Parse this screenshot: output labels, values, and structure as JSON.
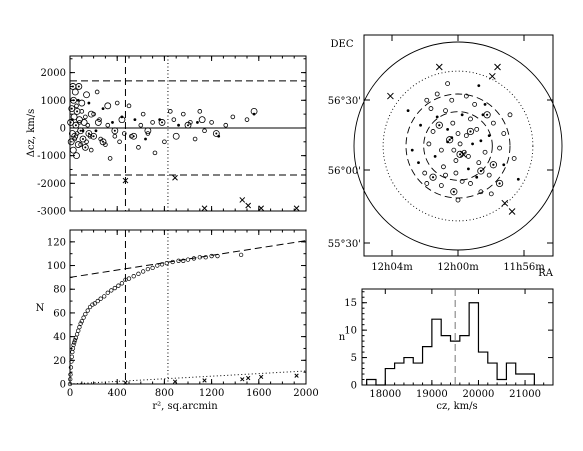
{
  "chart_data": [
    {
      "id": "dcz",
      "type": "scatter",
      "ylabel": "Δcz, km/s",
      "xlim": [
        0,
        2000
      ],
      "ylim": [
        -3000,
        2600
      ],
      "y_ticks": [
        "-3000",
        "-2000",
        "-1000",
        "0",
        "1000",
        "2000"
      ],
      "x_tick_values": [
        0,
        400,
        800,
        1200,
        1600,
        2000
      ],
      "hlines_dashed": [
        1700,
        -1700
      ],
      "hline_solid": 0,
      "vline_dashed": 470,
      "vline_dotted": 830,
      "members_small": [
        [
          20,
          300
        ],
        [
          40,
          -400
        ],
        [
          55,
          800
        ],
        [
          60,
          -200
        ],
        [
          70,
          1000
        ],
        [
          80,
          200
        ],
        [
          90,
          -600
        ],
        [
          100,
          600
        ],
        [
          110,
          -100
        ],
        [
          130,
          400
        ],
        [
          140,
          -500
        ],
        [
          150,
          100
        ],
        [
          160,
          900
        ],
        [
          170,
          -300
        ],
        [
          180,
          -800
        ],
        [
          200,
          500
        ],
        [
          220,
          -100
        ],
        [
          230,
          1300
        ],
        [
          250,
          300
        ],
        [
          260,
          -400
        ],
        [
          280,
          700
        ],
        [
          300,
          -600
        ],
        [
          320,
          100
        ],
        [
          340,
          -1100
        ],
        [
          360,
          200
        ],
        [
          380,
          -300
        ],
        [
          400,
          900
        ],
        [
          420,
          -500
        ],
        [
          440,
          400
        ],
        [
          460,
          -200
        ],
        [
          500,
          800
        ],
        [
          520,
          -300
        ],
        [
          550,
          300
        ],
        [
          580,
          -700
        ],
        [
          600,
          100
        ],
        [
          620,
          500
        ],
        [
          640,
          -400
        ],
        [
          660,
          -200
        ],
        [
          700,
          200
        ],
        [
          720,
          -900
        ],
        [
          760,
          300
        ],
        [
          800,
          -500
        ],
        [
          850,
          600
        ],
        [
          880,
          300
        ],
        [
          920,
          100
        ],
        [
          960,
          500
        ],
        [
          1020,
          200
        ],
        [
          1060,
          -400
        ],
        [
          1080,
          200
        ],
        [
          1100,
          600
        ],
        [
          1140,
          -100
        ],
        [
          1200,
          200
        ],
        [
          1260,
          -300
        ],
        [
          1320,
          100
        ],
        [
          1380,
          400
        ],
        [
          1500,
          300
        ],
        [
          1560,
          500
        ]
      ],
      "members_large": [
        [
          5,
          200
        ],
        [
          10,
          -500
        ],
        [
          15,
          700
        ],
        [
          20,
          -200
        ],
        [
          25,
          1500
        ],
        [
          28,
          -800
        ],
        [
          30,
          1000
        ],
        [
          35,
          400
        ],
        [
          40,
          -300
        ],
        [
          45,
          1300
        ],
        [
          50,
          100
        ],
        [
          55,
          -1000
        ],
        [
          60,
          600
        ],
        [
          70,
          -600
        ],
        [
          75,
          1500
        ],
        [
          80,
          300
        ],
        [
          90,
          -100
        ],
        [
          100,
          900
        ],
        [
          110,
          -400
        ],
        [
          120,
          200
        ],
        [
          130,
          -700
        ],
        [
          140,
          1200
        ],
        [
          160,
          -200
        ],
        [
          180,
          500
        ],
        [
          200,
          -300
        ],
        [
          240,
          200
        ],
        [
          280,
          -500
        ],
        [
          320,
          800
        ],
        [
          380,
          -100
        ],
        [
          440,
          300
        ],
        [
          540,
          -300
        ],
        [
          660,
          -100
        ],
        [
          780,
          200
        ],
        [
          900,
          -300
        ],
        [
          1000,
          100
        ],
        [
          1120,
          300
        ],
        [
          1240,
          -200
        ],
        [
          1560,
          600
        ]
      ],
      "nonmembers": [
        [
          470,
          -1900
        ],
        [
          890,
          -1800
        ],
        [
          1140,
          -2900
        ],
        [
          1460,
          -2600
        ],
        [
          1510,
          -2800
        ],
        [
          1620,
          -2900
        ],
        [
          1920,
          -2900
        ]
      ]
    },
    {
      "id": "cumulative",
      "type": "scatter",
      "ylabel": "N",
      "xlabel": "r², sq.arcmin",
      "xlim": [
        0,
        2000
      ],
      "ylim": [
        0,
        130
      ],
      "x_ticks": [
        "0",
        "400",
        "800",
        "1200",
        "1600",
        "2000"
      ],
      "y_ticks": [
        "0",
        "20",
        "40",
        "60",
        "80",
        "100",
        "120"
      ],
      "vline_dashed": 470,
      "vline_dotted": 830,
      "fit_dashed": {
        "x": [
          0,
          2000
        ],
        "y": [
          90,
          121
        ]
      },
      "fit_dotted": {
        "x": [
          0,
          2000
        ],
        "y": [
          0,
          11
        ]
      },
      "curve_members_r2": [
        0,
        2,
        4,
        8,
        12,
        16,
        20,
        25,
        30,
        36,
        42,
        50,
        60,
        70,
        80,
        90,
        100,
        115,
        130,
        150,
        170,
        190,
        210,
        235,
        260,
        290,
        320,
        350,
        380,
        410,
        440,
        470,
        500,
        540,
        580,
        620,
        660,
        700,
        740,
        780,
        820,
        870,
        920,
        960,
        1000,
        1050,
        1100,
        1150,
        1200,
        1250,
        1450
      ],
      "curve_members_N": [
        0,
        4,
        8,
        14,
        19,
        23,
        27,
        30,
        33,
        35,
        37,
        39,
        42,
        45,
        48,
        51,
        53,
        56,
        59,
        62,
        65,
        67,
        68,
        70,
        72,
        74,
        77,
        79,
        81,
        83,
        85,
        88,
        89,
        91,
        93,
        95,
        97,
        98,
        100,
        101,
        102,
        103,
        104,
        104,
        105,
        106,
        107,
        107,
        108,
        108,
        109
      ],
      "nonmember_points": [
        [
          470,
          1
        ],
        [
          890,
          2
        ],
        [
          1140,
          3
        ],
        [
          1460,
          4
        ],
        [
          1510,
          5
        ],
        [
          1620,
          6
        ],
        [
          1920,
          7
        ]
      ]
    },
    {
      "id": "sky",
      "type": "scatter",
      "ylabel": "DEC",
      "xlabel": "RA",
      "ra_ticks": [
        "12h04m",
        "12h00m",
        "11h56m"
      ],
      "dec_ticks": [
        "56°30'",
        "56°00'",
        "55°30'"
      ],
      "center": [
        0,
        0
      ],
      "circle_radii": [
        1.0,
        0.72,
        0.5,
        0.33
      ],
      "galaxies": [
        [
          -0.2,
          0.28
        ],
        [
          -0.12,
          0.34
        ],
        [
          -0.05,
          0.22
        ],
        [
          0.04,
          0.3
        ],
        [
          0.12,
          0.26
        ],
        [
          0.18,
          0.16
        ],
        [
          0.22,
          0.05
        ],
        [
          0.26,
          -0.06
        ],
        [
          0.2,
          -0.16
        ],
        [
          0.1,
          -0.22
        ],
        [
          -0.02,
          -0.26
        ],
        [
          -0.14,
          -0.2
        ],
        [
          -0.22,
          -0.1
        ],
        [
          -0.28,
          0.02
        ],
        [
          -0.24,
          0.14
        ],
        [
          -0.1,
          0.16
        ],
        [
          0.0,
          0.12
        ],
        [
          0.08,
          0.1
        ],
        [
          0.14,
          0.02
        ],
        [
          0.06,
          -0.06
        ],
        [
          -0.04,
          -0.04
        ],
        [
          -0.1,
          0.04
        ],
        [
          -0.16,
          -0.04
        ],
        [
          0.02,
          0.02
        ],
        [
          -0.06,
          0.08
        ],
        [
          0.1,
          -0.1
        ],
        [
          -0.02,
          -0.14
        ],
        [
          0.18,
          -0.3
        ],
        [
          0.3,
          -0.28
        ],
        [
          -0.32,
          -0.26
        ],
        [
          -0.36,
          0.2
        ],
        [
          0.34,
          0.22
        ],
        [
          -0.26,
          0.36
        ],
        [
          0.26,
          0.4
        ],
        [
          -0.06,
          0.44
        ],
        [
          0.4,
          -0.02
        ],
        [
          -0.44,
          -0.04
        ],
        [
          0.12,
          -0.36
        ],
        [
          -0.16,
          -0.38
        ],
        [
          0.44,
          -0.18
        ],
        [
          -0.3,
          0.44
        ],
        [
          0.5,
          0.3
        ],
        [
          0.58,
          -0.32
        ],
        [
          0.54,
          -0.12
        ],
        [
          -0.1,
          0.6
        ],
        [
          0.2,
          0.58
        ],
        [
          0.32,
          -0.46
        ],
        [
          0.0,
          -0.52
        ],
        [
          -0.48,
          0.34
        ],
        [
          0.08,
          0.48
        ],
        [
          0.22,
          -0.44
        ],
        [
          -0.38,
          -0.16
        ],
        [
          0.16,
          0.4
        ],
        [
          -0.2,
          0.5
        ],
        [
          0.3,
          0.1
        ],
        [
          -0.12,
          -0.28
        ],
        [
          0.04,
          -0.34
        ],
        [
          0.24,
          0.3
        ],
        [
          -0.3,
          -0.36
        ],
        [
          0.44,
          0.12
        ]
      ],
      "bright_galaxies": [
        [
          -0.08,
          0.06
        ],
        [
          0.02,
          -0.08
        ],
        [
          0.12,
          0.14
        ],
        [
          -0.18,
          0.2
        ],
        [
          0.22,
          -0.24
        ],
        [
          -0.24,
          -0.3
        ],
        [
          0.34,
          -0.18
        ],
        [
          0.28,
          0.3
        ],
        [
          -0.04,
          -0.44
        ],
        [
          0.4,
          -0.36
        ]
      ],
      "nonmembers": [
        [
          -0.65,
          0.48
        ],
        [
          -0.18,
          0.76
        ],
        [
          0.33,
          0.67
        ],
        [
          0.38,
          0.76
        ],
        [
          0.05,
          -0.08
        ],
        [
          0.45,
          -0.55
        ],
        [
          0.52,
          -0.63
        ]
      ]
    },
    {
      "id": "histogram",
      "type": "bar",
      "ylabel": "n",
      "xlabel": "cz, km/s",
      "xlim": [
        17500,
        21600
      ],
      "ylim": [
        0,
        17.5
      ],
      "x_ticks": [
        "18000",
        "19000",
        "20000",
        "21000"
      ],
      "x_tick_values": [
        18000,
        19000,
        20000,
        21000
      ],
      "y_ticks": [
        "0",
        "5",
        "10",
        "15"
      ],
      "y_tick_values": [
        0,
        5,
        10,
        15
      ],
      "bin_edges": [
        17600,
        17800,
        18000,
        18200,
        18400,
        18600,
        18800,
        19000,
        19200,
        19400,
        19600,
        19800,
        20000,
        20200,
        20400,
        20600,
        20800,
        21000,
        21200
      ],
      "counts": [
        1,
        0,
        3,
        4,
        5,
        4,
        7,
        12,
        9,
        8,
        9,
        15,
        6,
        4,
        1,
        4,
        2,
        2
      ],
      "vline_dashed": 19500
    }
  ]
}
